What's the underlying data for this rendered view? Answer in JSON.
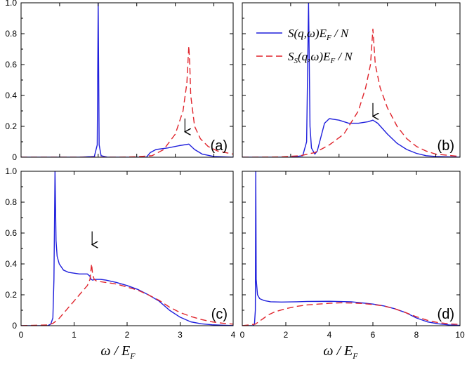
{
  "figure": {
    "xlabel": "ω / E",
    "xlabel_sub": "F",
    "legend": [
      {
        "series": "S",
        "label": "S(q,ω)E",
        "sub": "F",
        "suffix": " / N",
        "color": "#1f1fdc",
        "style": "solid"
      },
      {
        "series": "Ss",
        "label": "S",
        "sub1": "S",
        "mid": "(q,ω)E",
        "sub2": "F",
        "suffix": " / N",
        "color": "#e0242c",
        "style": "dashed"
      }
    ]
  },
  "chart_data": [
    {
      "type": "line",
      "panel": "(a)",
      "xlim": [
        0,
        1.1
      ],
      "ylim": [
        0,
        1.0
      ],
      "xticks": [],
      "yticks": [
        "0",
        "0.2",
        "0.4",
        "0.6",
        "0.8",
        "1.0"
      ],
      "arrow": {
        "x": 0.85,
        "y": 0.16
      },
      "series": [
        {
          "name": "S(q,ω)E_F/N",
          "x": [
            0,
            0.3,
            0.38,
            0.395,
            0.4,
            0.405,
            0.415,
            0.45,
            0.65,
            0.67,
            0.7,
            0.76,
            0.82,
            0.87,
            0.9,
            0.94,
            1.0,
            1.1
          ],
          "y": [
            0,
            0,
            0.005,
            0.08,
            1.0,
            0.08,
            0.01,
            0,
            0,
            0.03,
            0.05,
            0.06,
            0.075,
            0.085,
            0.05,
            0.02,
            0.005,
            0
          ]
        },
        {
          "name": "S_S(q,ω)E_F/N",
          "x": [
            0,
            0.5,
            0.6,
            0.68,
            0.74,
            0.8,
            0.84,
            0.86,
            0.87,
            0.875,
            0.88,
            0.9,
            0.93,
            0.97,
            1.02,
            1.1
          ],
          "y": [
            0,
            0,
            0.003,
            0.01,
            0.05,
            0.15,
            0.3,
            0.48,
            0.72,
            0.6,
            0.4,
            0.2,
            0.12,
            0.07,
            0.04,
            0.02
          ]
        }
      ]
    },
    {
      "type": "line",
      "panel": "(b)",
      "xlim": [
        0,
        4.5
      ],
      "ylim": [
        0,
        1.0
      ],
      "xticks": [],
      "yticks": [],
      "arrow": {
        "x": 2.7,
        "y": 0.26
      },
      "series": [
        {
          "name": "S(q,ω)E_F/N",
          "x": [
            0,
            1.0,
            1.25,
            1.33,
            1.37,
            1.4,
            1.43,
            1.5,
            1.55,
            1.6,
            1.7,
            1.8,
            2.0,
            2.2,
            2.4,
            2.6,
            2.7,
            2.8,
            3.0,
            3.2,
            3.4,
            3.6,
            3.8,
            4.0,
            4.5
          ],
          "y": [
            0,
            0,
            0.01,
            0.1,
            1.0,
            0.2,
            0.06,
            0.02,
            0.04,
            0.1,
            0.22,
            0.25,
            0.24,
            0.22,
            0.22,
            0.23,
            0.24,
            0.22,
            0.15,
            0.09,
            0.05,
            0.025,
            0.01,
            0.005,
            0
          ]
        },
        {
          "name": "S_S(q,ω)E_F/N",
          "x": [
            0,
            0.8,
            1.2,
            1.5,
            1.8,
            2.1,
            2.4,
            2.55,
            2.65,
            2.7,
            2.75,
            2.85,
            3.0,
            3.2,
            3.4,
            3.6,
            3.8,
            4.0,
            4.5
          ],
          "y": [
            0,
            0.002,
            0.01,
            0.03,
            0.08,
            0.15,
            0.3,
            0.45,
            0.6,
            0.83,
            0.6,
            0.45,
            0.32,
            0.2,
            0.12,
            0.07,
            0.04,
            0.02,
            0.005
          ]
        }
      ]
    },
    {
      "type": "line",
      "panel": "(c)",
      "xlim": [
        0,
        4
      ],
      "ylim": [
        0,
        1.0
      ],
      "xticks": [
        "0",
        "1",
        "2",
        "3",
        "4"
      ],
      "yticks": [
        "0",
        "0.2",
        "0.4",
        "0.6",
        "0.8",
        "1.0"
      ],
      "arrow": {
        "x": 1.34,
        "y": 0.52
      },
      "series": [
        {
          "name": "S(q,ω)E_F/N",
          "x": [
            0,
            0.5,
            0.56,
            0.6,
            0.62,
            0.64,
            0.66,
            0.68,
            0.72,
            0.8,
            0.9,
            1.0,
            1.1,
            1.2,
            1.25,
            1.3,
            1.32,
            1.35,
            1.4,
            1.5,
            1.6,
            1.8,
            2.0,
            2.2,
            2.4,
            2.6,
            2.8,
            3.0,
            3.2,
            3.4,
            3.6,
            3.8,
            4.0
          ],
          "y": [
            0,
            0,
            0.01,
            0.05,
            0.3,
            1.0,
            0.55,
            0.45,
            0.4,
            0.36,
            0.345,
            0.34,
            0.335,
            0.335,
            0.335,
            0.32,
            0.3,
            0.295,
            0.3,
            0.3,
            0.295,
            0.28,
            0.26,
            0.235,
            0.2,
            0.16,
            0.1,
            0.055,
            0.025,
            0.012,
            0.006,
            0.003,
            0.001
          ]
        },
        {
          "name": "S_S(q,ω)E_F/N",
          "x": [
            0,
            0.5,
            0.6,
            0.7,
            0.8,
            0.9,
            1.0,
            1.1,
            1.2,
            1.25,
            1.3,
            1.33,
            1.35,
            1.38,
            1.42,
            1.5,
            1.6,
            1.8,
            2.0,
            2.2,
            2.4,
            2.6,
            2.8,
            3.0,
            3.2,
            3.4,
            3.6,
            3.8,
            4.0
          ],
          "y": [
            0,
            0.005,
            0.015,
            0.04,
            0.08,
            0.12,
            0.16,
            0.2,
            0.24,
            0.26,
            0.3,
            0.4,
            0.33,
            0.3,
            0.29,
            0.285,
            0.28,
            0.27,
            0.25,
            0.23,
            0.2,
            0.165,
            0.12,
            0.085,
            0.06,
            0.04,
            0.025,
            0.016,
            0.01
          ]
        }
      ]
    },
    {
      "type": "line",
      "panel": "(d)",
      "xlim": [
        0,
        10
      ],
      "ylim": [
        0,
        1.0
      ],
      "xticks": [
        "0",
        "2",
        "4",
        "6",
        "8",
        "10"
      ],
      "yticks": [],
      "series": [
        {
          "name": "S(q,ω)E_F/N",
          "x": [
            0,
            0.5,
            0.56,
            0.6,
            0.62,
            0.64,
            0.7,
            0.8,
            1.0,
            1.3,
            1.8,
            2.5,
            3.0,
            4.0,
            5.0,
            6.0,
            6.5,
            7.0,
            7.5,
            8.0,
            8.5,
            9.0,
            9.5,
            10.0
          ],
          "y": [
            0,
            0,
            0.01,
            0.1,
            1.0,
            0.3,
            0.2,
            0.175,
            0.163,
            0.155,
            0.153,
            0.155,
            0.157,
            0.158,
            0.155,
            0.14,
            0.128,
            0.11,
            0.085,
            0.05,
            0.025,
            0.012,
            0.005,
            0.002
          ]
        },
        {
          "name": "S_S(q,ω)E_F/N",
          "x": [
            0,
            0.6,
            0.8,
            1.0,
            1.2,
            1.5,
            2.0,
            2.5,
            3.0,
            3.5,
            4.0,
            4.5,
            5.0,
            5.5,
            6.0,
            6.5,
            7.0,
            7.5,
            8.0,
            8.5,
            9.0,
            9.5,
            10.0
          ],
          "y": [
            0,
            0.01,
            0.03,
            0.05,
            0.07,
            0.09,
            0.11,
            0.125,
            0.135,
            0.14,
            0.145,
            0.148,
            0.147,
            0.144,
            0.137,
            0.128,
            0.11,
            0.085,
            0.058,
            0.035,
            0.02,
            0.012,
            0.008
          ]
        }
      ]
    }
  ]
}
